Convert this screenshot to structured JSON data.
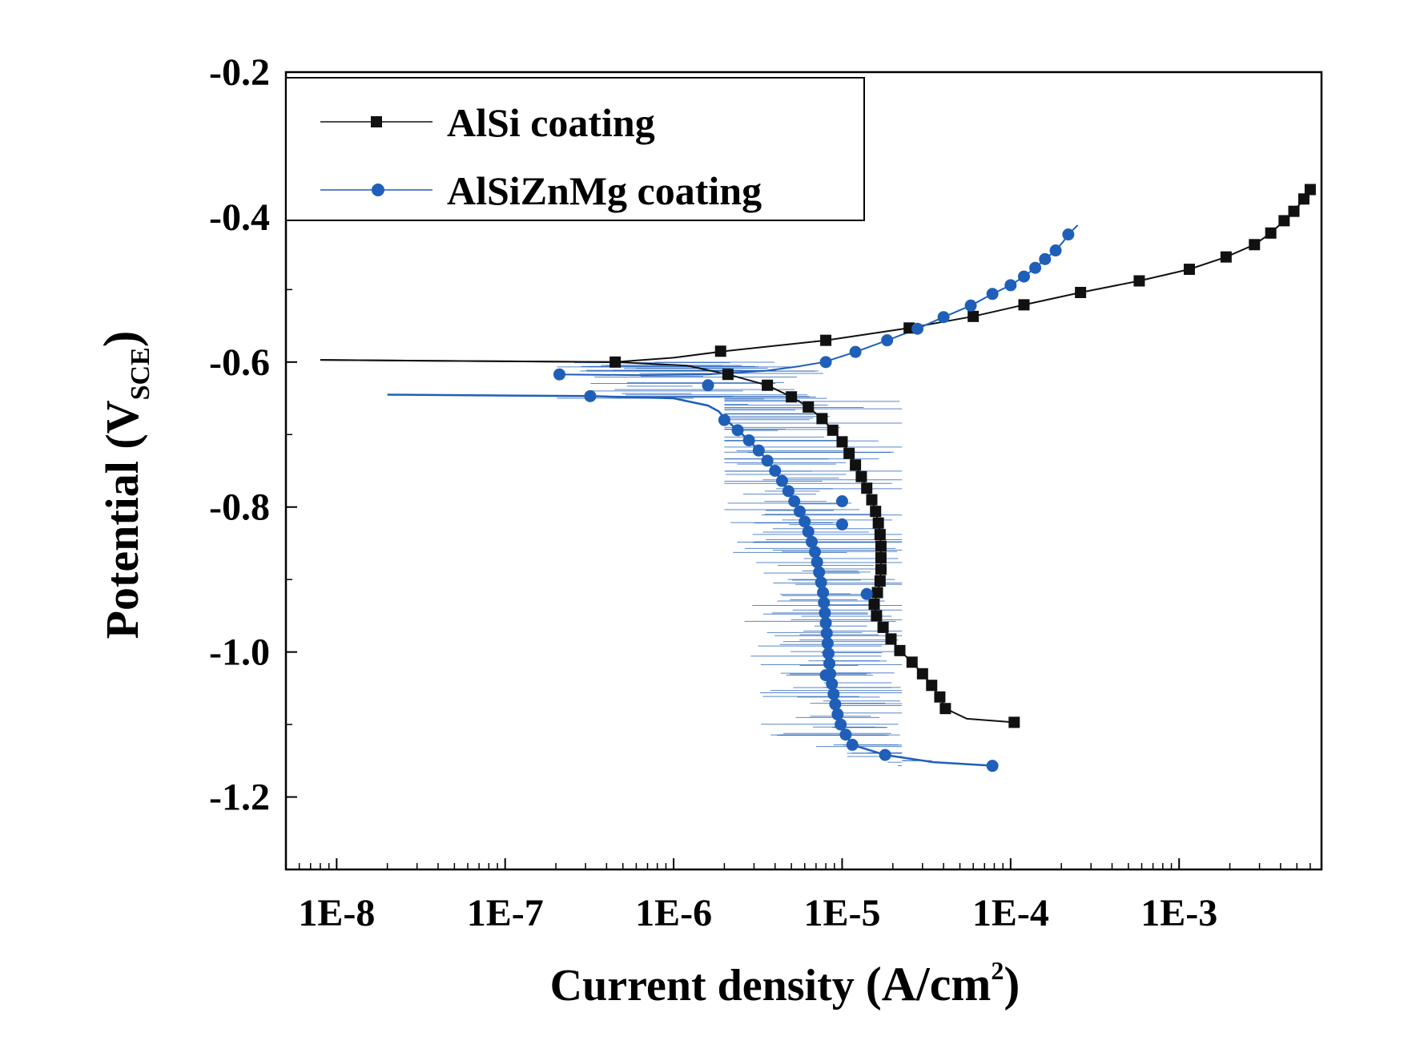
{
  "chart_data": {
    "type": "line",
    "title": "",
    "xlabel": "Current density (A/cm²)",
    "xlabel_main": "Current density ",
    "xlabel_unit": "(A/cm",
    "xlabel_sup": "2",
    "xlabel_close": ")",
    "ylabel": "Potential (V_SCE)",
    "ylabel_main": "Potential (V",
    "ylabel_sub": "SCE",
    "ylabel_close": ")",
    "xscale": "log",
    "xlim": [
      5e-09,
      0.007
    ],
    "ylim": [
      -1.3,
      -0.2
    ],
    "x_ticks": [
      1e-08,
      1e-07,
      1e-06,
      1e-05,
      0.0001,
      0.001
    ],
    "x_tick_labels": [
      "1E-8",
      "1E-7",
      "1E-6",
      "1E-5",
      "1E-4",
      "1E-3"
    ],
    "y_ticks": [
      -0.2,
      -0.4,
      -0.6,
      -0.8,
      -1.0,
      -1.2
    ],
    "y_tick_labels": [
      "-0.2",
      "-0.4",
      "-0.6",
      "-0.8",
      "-1.0",
      "-1.2"
    ],
    "legend_position": "top-left",
    "series": [
      {
        "name": "AlSi coating",
        "color": "#111111",
        "marker": "square",
        "line_points": [
          [
            8e-09,
            -0.597
          ],
          [
            1e-07,
            -0.599
          ],
          [
            4.5e-07,
            -0.6
          ],
          [
            1e-06,
            -0.594
          ],
          [
            2e-06,
            -0.585
          ],
          [
            8e-06,
            -0.57
          ],
          [
            2.5e-05,
            -0.553
          ],
          [
            6e-05,
            -0.537
          ],
          [
            0.00012,
            -0.521
          ],
          [
            0.00026,
            -0.504
          ],
          [
            0.00058,
            -0.488
          ],
          [
            0.00115,
            -0.472
          ],
          [
            0.0019,
            -0.455
          ],
          [
            0.0028,
            -0.438
          ],
          [
            0.0035,
            -0.422
          ],
          [
            0.0042,
            -0.405
          ],
          [
            0.0048,
            -0.392
          ],
          [
            0.0055,
            -0.375
          ],
          [
            0.006,
            -0.362
          ]
        ],
        "markers": [
          [
            4.5e-07,
            -0.6
          ],
          [
            1.9e-06,
            -0.585
          ],
          [
            8e-06,
            -0.57
          ],
          [
            2.5e-05,
            -0.553
          ],
          [
            6e-05,
            -0.537
          ],
          [
            0.00012,
            -0.521
          ],
          [
            0.00026,
            -0.504
          ],
          [
            0.00058,
            -0.488
          ],
          [
            0.00115,
            -0.472
          ],
          [
            0.0019,
            -0.455
          ],
          [
            0.0028,
            -0.438
          ],
          [
            0.0035,
            -0.422
          ],
          [
            0.0042,
            -0.405
          ],
          [
            0.0048,
            -0.392
          ],
          [
            0.0055,
            -0.375
          ],
          [
            0.006,
            -0.362
          ],
          [
            2.1e-06,
            -0.617
          ],
          [
            3.6e-06,
            -0.632
          ],
          [
            5e-06,
            -0.648
          ],
          [
            6.3e-06,
            -0.662
          ],
          [
            7.6e-06,
            -0.678
          ],
          [
            8.8e-06,
            -0.694
          ],
          [
            1e-05,
            -0.71
          ],
          [
            1.1e-05,
            -0.726
          ],
          [
            1.2e-05,
            -0.742
          ],
          [
            1.3e-05,
            -0.758
          ],
          [
            1.4e-05,
            -0.774
          ],
          [
            1.5e-05,
            -0.79
          ],
          [
            1.58e-05,
            -0.806
          ],
          [
            1.64e-05,
            -0.822
          ],
          [
            1.68e-05,
            -0.838
          ],
          [
            1.7e-05,
            -0.854
          ],
          [
            1.7e-05,
            -0.87
          ],
          [
            1.7e-05,
            -0.886
          ],
          [
            1.68e-05,
            -0.902
          ],
          [
            1.62e-05,
            -0.918
          ],
          [
            1.55e-05,
            -0.934
          ],
          [
            1.6e-05,
            -0.95
          ],
          [
            1.75e-05,
            -0.966
          ],
          [
            1.95e-05,
            -0.982
          ],
          [
            2.2e-05,
            -0.998
          ],
          [
            2.6e-05,
            -1.014
          ],
          [
            3e-05,
            -1.03
          ],
          [
            3.4e-05,
            -1.046
          ],
          [
            3.8e-05,
            -1.062
          ],
          [
            4.1e-05,
            -1.078
          ],
          [
            0.000105,
            -1.097
          ]
        ],
        "cathodic_points": [
          [
            8e-09,
            -0.597
          ],
          [
            1e-07,
            -0.599
          ],
          [
            4.5e-07,
            -0.6
          ],
          [
            1.2e-06,
            -0.605
          ],
          [
            2.1e-06,
            -0.617
          ],
          [
            3.6e-06,
            -0.632
          ],
          [
            5e-06,
            -0.648
          ],
          [
            6.3e-06,
            -0.662
          ],
          [
            7.6e-06,
            -0.678
          ],
          [
            8.8e-06,
            -0.694
          ],
          [
            1e-05,
            -0.71
          ],
          [
            1.1e-05,
            -0.726
          ],
          [
            1.2e-05,
            -0.742
          ],
          [
            1.3e-05,
            -0.758
          ],
          [
            1.4e-05,
            -0.774
          ],
          [
            1.5e-05,
            -0.79
          ],
          [
            1.58e-05,
            -0.806
          ],
          [
            1.64e-05,
            -0.822
          ],
          [
            1.68e-05,
            -0.838
          ],
          [
            1.7e-05,
            -0.854
          ],
          [
            1.7e-05,
            -0.87
          ],
          [
            1.7e-05,
            -0.886
          ],
          [
            1.68e-05,
            -0.902
          ],
          [
            1.62e-05,
            -0.918
          ],
          [
            1.55e-05,
            -0.934
          ],
          [
            1.6e-05,
            -0.95
          ],
          [
            1.75e-05,
            -0.966
          ],
          [
            1.95e-05,
            -0.982
          ],
          [
            2.2e-05,
            -0.998
          ],
          [
            2.6e-05,
            -1.014
          ],
          [
            3e-05,
            -1.03
          ],
          [
            3.4e-05,
            -1.046
          ],
          [
            3.8e-05,
            -1.062
          ],
          [
            4.1e-05,
            -1.078
          ],
          [
            5.5e-05,
            -1.092
          ],
          [
            0.000105,
            -1.097
          ]
        ]
      },
      {
        "name": "AlSiZnMg coating",
        "color": "#1f5fb8",
        "marker": "circle",
        "anodic_points": [
          [
            2e-07,
            -0.617
          ],
          [
            6e-07,
            -0.618
          ],
          [
            1.6e-06,
            -0.617
          ],
          [
            3.5e-06,
            -0.612
          ],
          [
            5.5e-06,
            -0.606
          ],
          [
            7.8e-06,
            -0.6
          ],
          [
            1.2e-05,
            -0.586
          ],
          [
            1.85e-05,
            -0.57
          ],
          [
            2.8e-05,
            -0.554
          ],
          [
            4e-05,
            -0.538
          ],
          [
            5.8e-05,
            -0.522
          ],
          [
            7.8e-05,
            -0.506
          ],
          [
            0.0001,
            -0.494
          ],
          [
            0.00012,
            -0.482
          ],
          [
            0.00014,
            -0.47
          ],
          [
            0.00016,
            -0.458
          ],
          [
            0.000185,
            -0.446
          ],
          [
            0.000205,
            -0.434
          ],
          [
            0.00022,
            -0.424
          ],
          [
            0.00025,
            -0.411
          ]
        ],
        "cathodic_points": [
          [
            2e-08,
            -0.645
          ],
          [
            3.2e-07,
            -0.647
          ],
          [
            1e-06,
            -0.65
          ],
          [
            1.6e-06,
            -0.66
          ],
          [
            1.85e-06,
            -0.668
          ],
          [
            2.05e-06,
            -0.68
          ],
          [
            2.4e-06,
            -0.694
          ],
          [
            2.8e-06,
            -0.708
          ],
          [
            3.2e-06,
            -0.722
          ],
          [
            3.6e-06,
            -0.736
          ],
          [
            4e-06,
            -0.75
          ],
          [
            4.4e-06,
            -0.764
          ],
          [
            4.8e-06,
            -0.778
          ],
          [
            5.2e-06,
            -0.792
          ],
          [
            5.6e-06,
            -0.806
          ],
          [
            6e-06,
            -0.82
          ],
          [
            6.3e-06,
            -0.834
          ],
          [
            6.6e-06,
            -0.848
          ],
          [
            6.9e-06,
            -0.862
          ],
          [
            7.1e-06,
            -0.876
          ],
          [
            7.3e-06,
            -0.89
          ],
          [
            7.5e-06,
            -0.904
          ],
          [
            7.7e-06,
            -0.918
          ],
          [
            7.8e-06,
            -0.932
          ],
          [
            7.9e-06,
            -0.946
          ],
          [
            8e-06,
            -0.96
          ],
          [
            8.1e-06,
            -0.974
          ],
          [
            8.2e-06,
            -0.988
          ],
          [
            8.3e-06,
            -1.002
          ],
          [
            8.4e-06,
            -1.016
          ],
          [
            8.5e-06,
            -1.03
          ],
          [
            8.7e-06,
            -1.044
          ],
          [
            8.9e-06,
            -1.058
          ],
          [
            9.1e-06,
            -1.072
          ],
          [
            9.4e-06,
            -1.086
          ],
          [
            9.8e-06,
            -1.1
          ],
          [
            1.05e-05,
            -1.114
          ],
          [
            1.15e-05,
            -1.128
          ],
          [
            1.8e-05,
            -1.142
          ],
          [
            3.5e-05,
            -1.152
          ],
          [
            8e-05,
            -1.157
          ]
        ],
        "markers": [
          [
            2.1e-07,
            -0.617
          ],
          [
            3.2e-07,
            -0.647
          ],
          [
            1.6e-06,
            -0.632
          ],
          [
            2e-06,
            -0.68
          ],
          [
            8e-06,
            -0.6
          ],
          [
            1.2e-05,
            -0.586
          ],
          [
            1.85e-05,
            -0.57
          ],
          [
            2.8e-05,
            -0.554
          ],
          [
            4e-05,
            -0.538
          ],
          [
            5.8e-05,
            -0.522
          ],
          [
            7.8e-05,
            -0.506
          ],
          [
            0.0001,
            -0.494
          ],
          [
            0.00012,
            -0.482
          ],
          [
            0.00014,
            -0.47
          ],
          [
            0.00016,
            -0.458
          ],
          [
            0.000185,
            -0.446
          ],
          [
            0.00022,
            -0.424
          ],
          [
            2.4e-06,
            -0.694
          ],
          [
            2.8e-06,
            -0.708
          ],
          [
            3.2e-06,
            -0.722
          ],
          [
            3.6e-06,
            -0.736
          ],
          [
            4e-06,
            -0.75
          ],
          [
            4.4e-06,
            -0.764
          ],
          [
            4.8e-06,
            -0.778
          ],
          [
            5.2e-06,
            -0.792
          ],
          [
            5.6e-06,
            -0.806
          ],
          [
            6e-06,
            -0.82
          ],
          [
            6.3e-06,
            -0.834
          ],
          [
            6.6e-06,
            -0.848
          ],
          [
            6.9e-06,
            -0.862
          ],
          [
            7.1e-06,
            -0.876
          ],
          [
            7.3e-06,
            -0.89
          ],
          [
            7.5e-06,
            -0.904
          ],
          [
            7.7e-06,
            -0.918
          ],
          [
            7.8e-06,
            -0.932
          ],
          [
            7.9e-06,
            -0.946
          ],
          [
            8e-06,
            -0.96
          ],
          [
            8.1e-06,
            -0.974
          ],
          [
            8.2e-06,
            -0.988
          ],
          [
            8.3e-06,
            -1.002
          ],
          [
            8.4e-06,
            -1.016
          ],
          [
            8.5e-06,
            -1.03
          ],
          [
            8.7e-06,
            -1.044
          ],
          [
            8.9e-06,
            -1.058
          ],
          [
            9.1e-06,
            -1.072
          ],
          [
            9.4e-06,
            -1.086
          ],
          [
            9.8e-06,
            -1.1
          ],
          [
            1.05e-05,
            -1.114
          ],
          [
            1.15e-05,
            -1.128
          ],
          [
            1.8e-05,
            -1.142
          ],
          [
            7.8e-05,
            -1.157
          ],
          [
            1e-05,
            -0.792
          ],
          [
            1e-05,
            -0.824
          ],
          [
            1.4e-05,
            -0.92
          ],
          [
            8e-06,
            -1.032
          ]
        ],
        "noise_spikes_from_x": 2e-06,
        "noise_spikes_to_x": 1.8e-05
      }
    ]
  }
}
